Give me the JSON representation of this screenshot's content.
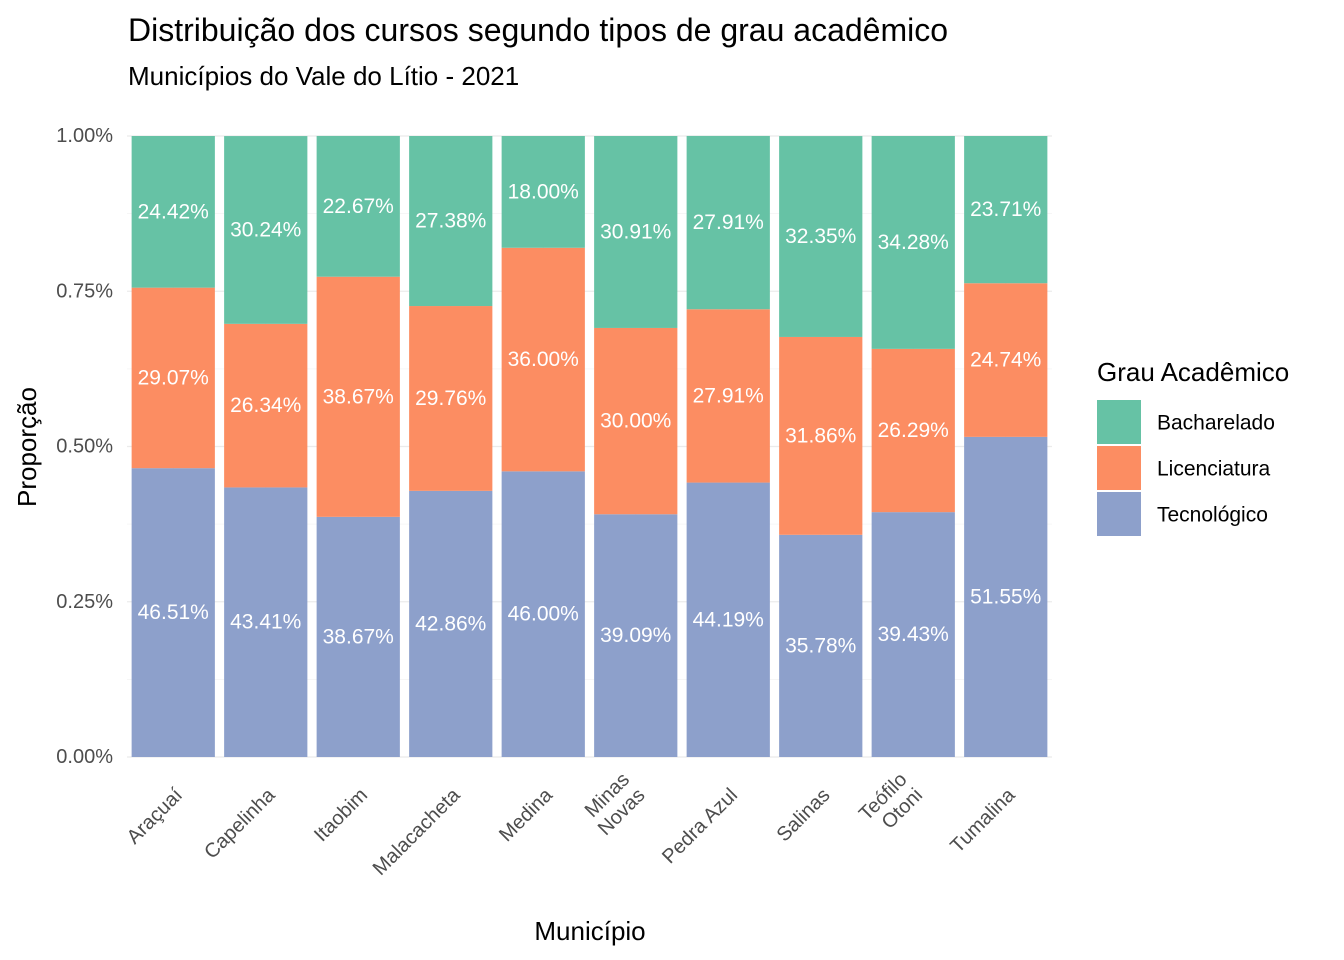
{
  "chart_data": {
    "type": "bar",
    "stacked": true,
    "title": "Distribuição dos cursos segundo tipos de grau acadêmico",
    "subtitle": "Municípios do Vale do Lítio - 2021",
    "xlabel": "Município",
    "ylabel": "Proporção",
    "ylim": [
      0,
      1
    ],
    "yticks": [
      0,
      0.25,
      0.5,
      0.75,
      1
    ],
    "ytick_labels": [
      "0.00%",
      "0.25%",
      "0.50%",
      "0.75%",
      "1.00%"
    ],
    "categories": [
      [
        "Araçuaí"
      ],
      [
        "Capelinha"
      ],
      [
        "Itaobim"
      ],
      [
        "Malacacheta"
      ],
      [
        "Medina"
      ],
      [
        "Minas",
        "Novas"
      ],
      [
        "Pedra Azul"
      ],
      [
        "Salinas"
      ],
      [
        "Teófilo",
        "Otoni"
      ],
      [
        "Tumalina"
      ]
    ],
    "legend": {
      "title": "Grau Acadêmico",
      "position": "right"
    },
    "grid": true,
    "series": [
      {
        "name": "Tecnológico",
        "color": "#8DA0CB",
        "values": [
          0.4651,
          0.4341,
          0.3867,
          0.4286,
          0.46,
          0.3909,
          0.4419,
          0.3578,
          0.3943,
          0.5155
        ],
        "labels": [
          "46.51%",
          "43.41%",
          "38.67%",
          "42.86%",
          "46.00%",
          "39.09%",
          "44.19%",
          "35.78%",
          "39.43%",
          "51.55%"
        ]
      },
      {
        "name": "Licenciatura",
        "color": "#FC8D62",
        "values": [
          0.2907,
          0.2634,
          0.3867,
          0.2976,
          0.36,
          0.3,
          0.2791,
          0.3186,
          0.2629,
          0.2474
        ],
        "labels": [
          "29.07%",
          "26.34%",
          "38.67%",
          "29.76%",
          "36.00%",
          "30.00%",
          "27.91%",
          "31.86%",
          "26.29%",
          "24.74%"
        ]
      },
      {
        "name": "Bacharelado",
        "color": "#66C2A5",
        "values": [
          0.2442,
          0.3024,
          0.2267,
          0.2738,
          0.18,
          0.3091,
          0.2791,
          0.3235,
          0.3428,
          0.2371
        ],
        "labels": [
          "24.42%",
          "30.24%",
          "22.67%",
          "27.38%",
          "18.00%",
          "30.91%",
          "27.91%",
          "32.35%",
          "34.28%",
          "23.71%"
        ]
      }
    ],
    "legend_order": [
      "Bacharelado",
      "Licenciatura",
      "Tecnológico"
    ]
  }
}
